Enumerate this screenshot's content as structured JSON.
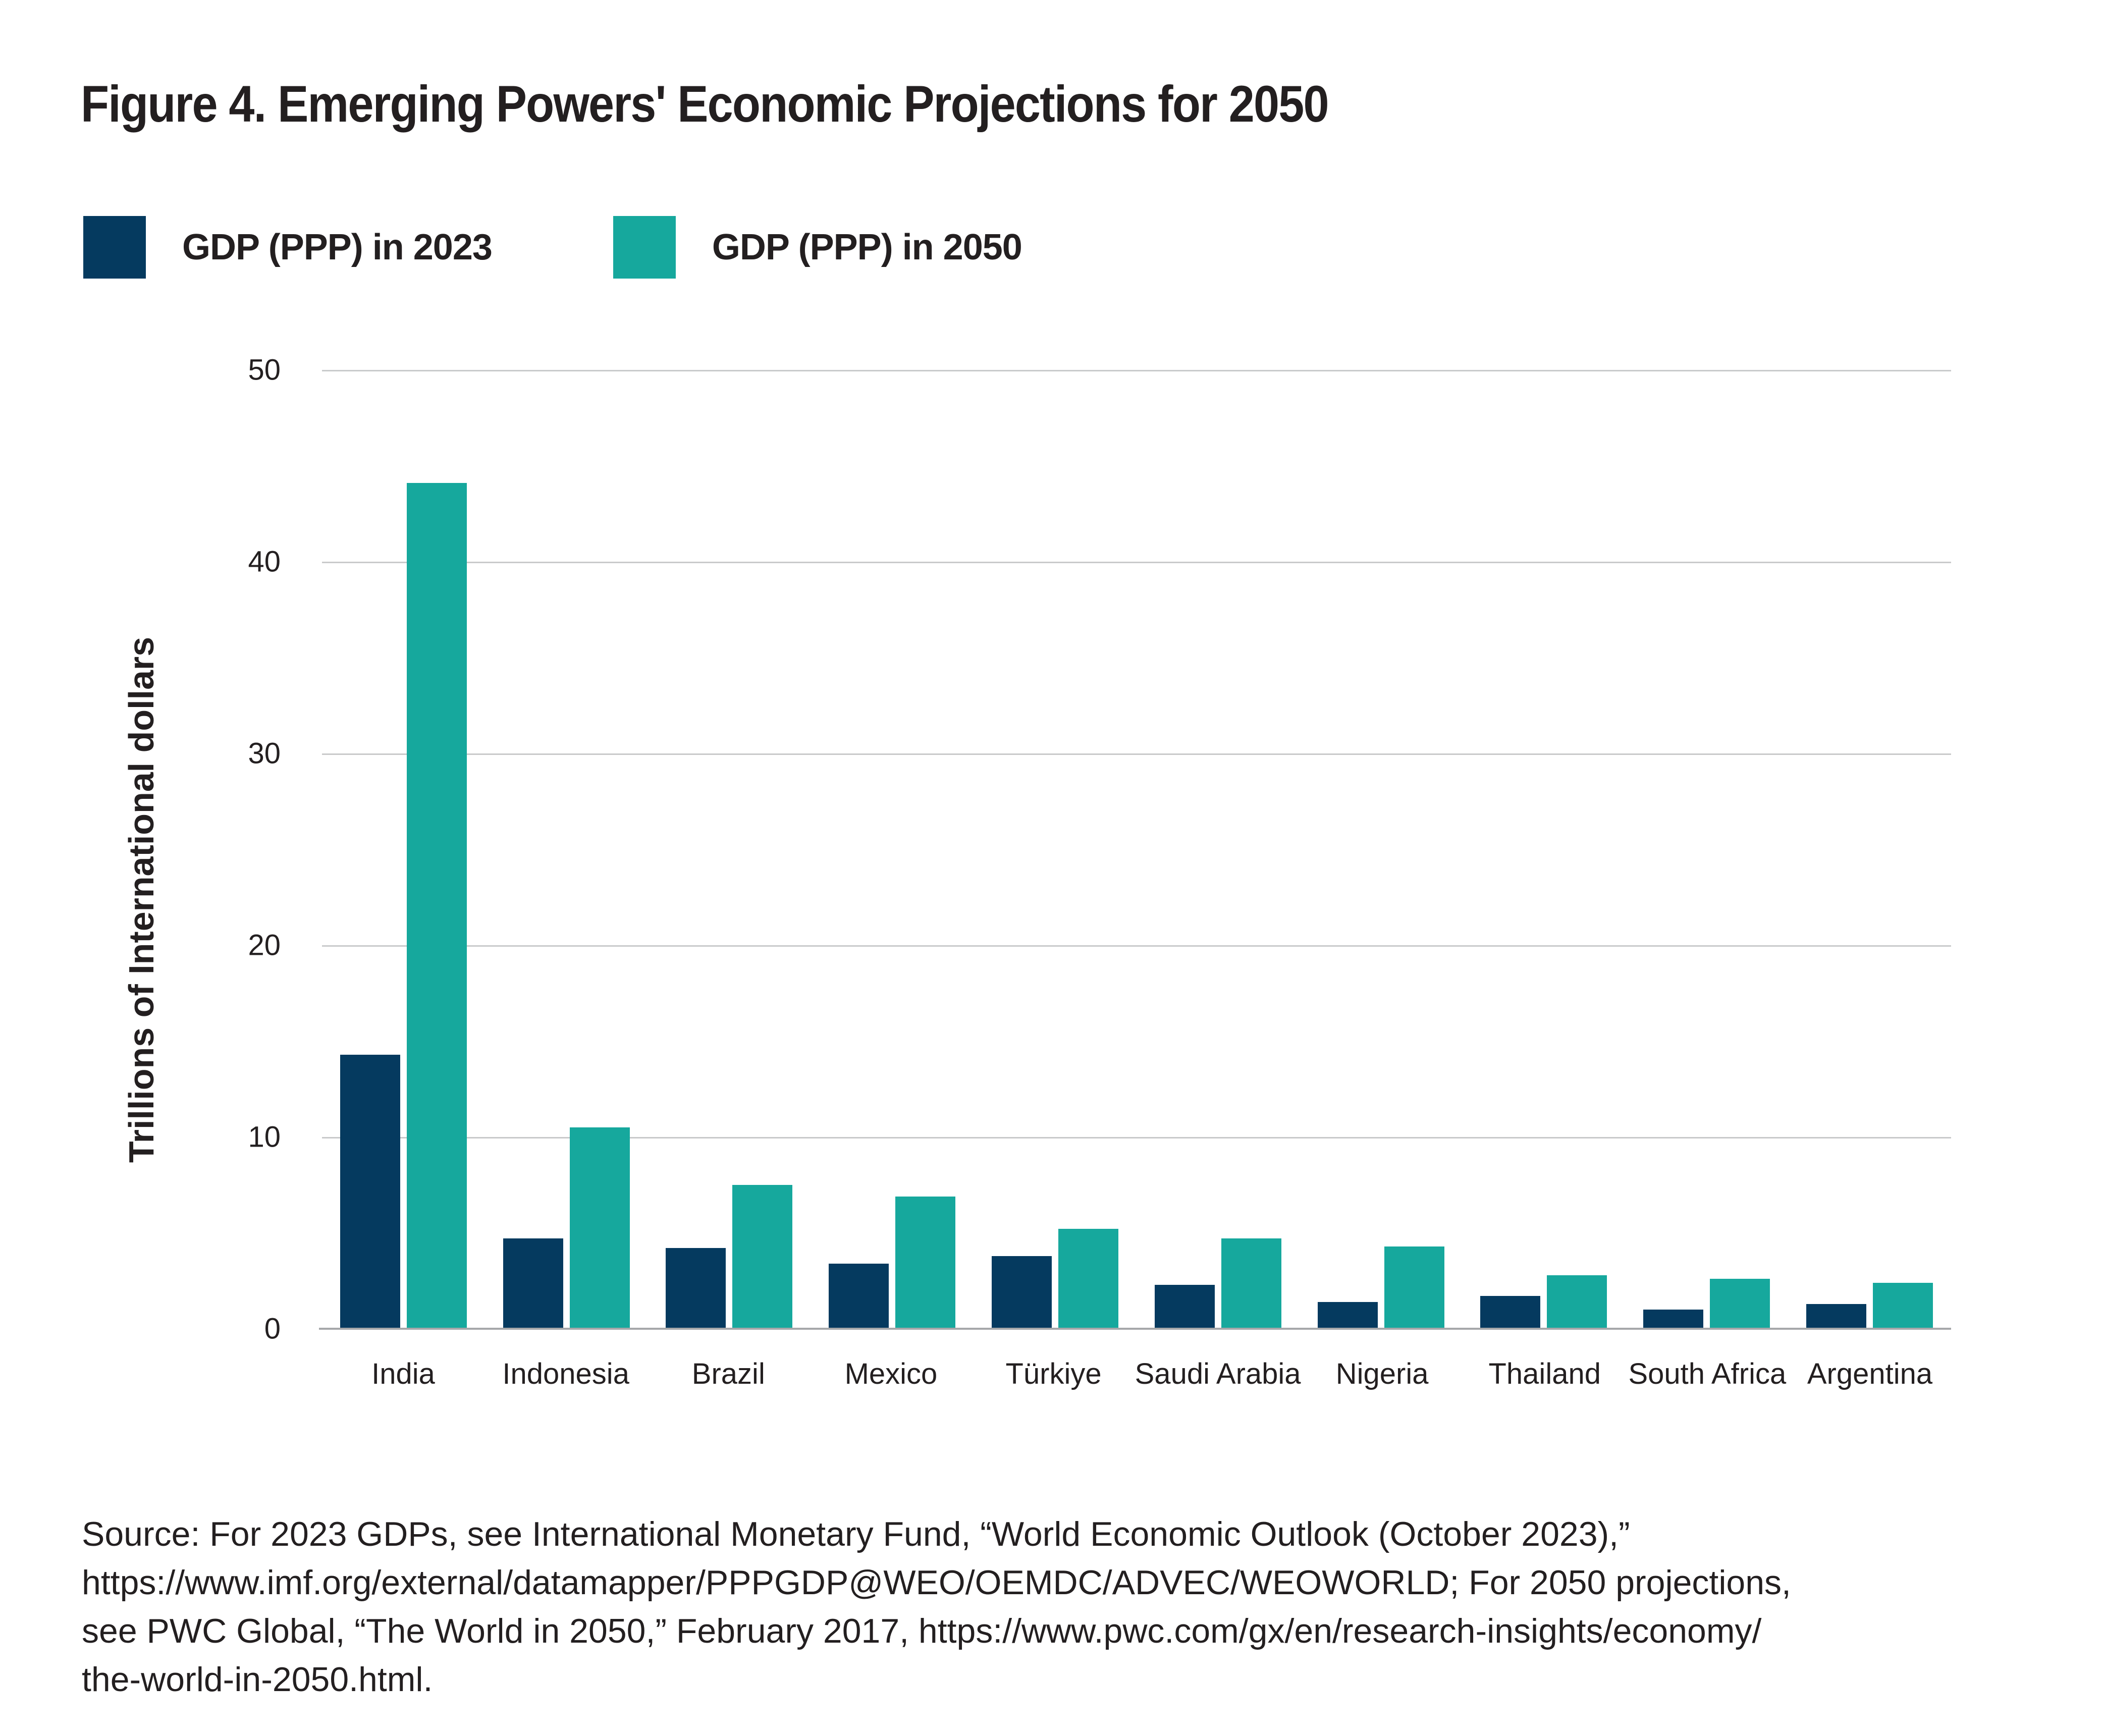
{
  "figure": {
    "title": "Figure 4. Emerging Powers' Economic Projections for 2050",
    "source_lines": [
      "Source: For 2023 GDPs, see International Monetary Fund, “World Economic Outlook (October 2023),”",
      "https://www.imf.org/external/datamapper/PPPGDP@WEO/OEMDC/ADVEC/WEOWORLD; For 2050 projections,",
      "see PWC Global, “The World in 2050,” February 2017, https://www.pwc.com/gx/en/research-insights/economy/",
      "the-world-in-2050.html."
    ]
  },
  "legend": [
    {
      "label": "GDP (PPP) in 2023",
      "color": "#053a5f"
    },
    {
      "label": "GDP (PPP) in 2050",
      "color": "#16a89d"
    }
  ],
  "chart_data": {
    "type": "bar",
    "title": "Figure 4. Emerging Powers' Economic Projections for 2050",
    "categories": [
      "India",
      "Indonesia",
      "Brazil",
      "Mexico",
      "Türkiye",
      "Saudi Arabia",
      "Nigeria",
      "Thailand",
      "South Africa",
      "Argentina"
    ],
    "series": [
      {
        "name": "GDP (PPP) in 2023",
        "color": "#053a5f",
        "values": [
          14.3,
          4.7,
          4.2,
          3.4,
          3.8,
          2.3,
          1.4,
          1.7,
          1.0,
          1.3
        ]
      },
      {
        "name": "GDP (PPP) in 2050",
        "color": "#16a89d",
        "values": [
          44.1,
          10.5,
          7.5,
          6.9,
          5.2,
          4.7,
          4.3,
          2.8,
          2.6,
          2.4
        ]
      }
    ],
    "xlabel": "",
    "ylabel": "Trillions of International dollars",
    "ylim": [
      0,
      50
    ],
    "yticks": [
      0,
      10,
      20,
      30,
      40,
      50
    ],
    "grid": true,
    "legend_position": "top-left"
  },
  "colors": {
    "gridline": "#c9cacb",
    "baseline": "#a6a8aa",
    "text": "#231f20",
    "background": "#ffffff"
  }
}
